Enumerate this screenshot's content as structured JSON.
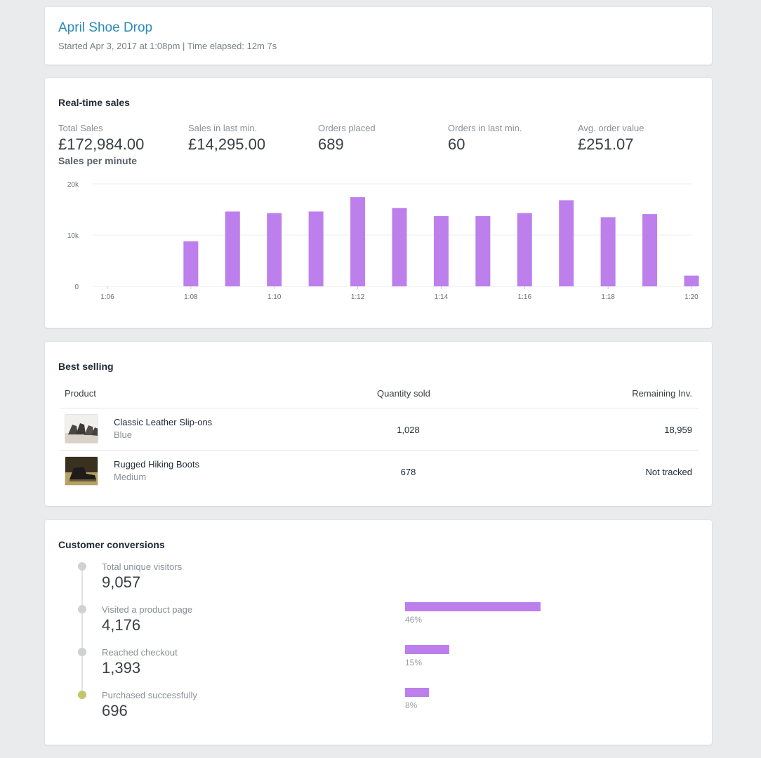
{
  "header": {
    "title": "April Shoe Drop",
    "subtitle": "Started Apr 3, 2017 at 1:08pm | Time elapsed: 12m 7s"
  },
  "realtime": {
    "title": "Real-time sales",
    "metrics": [
      {
        "label": "Total Sales",
        "value": "£172,984.00"
      },
      {
        "label": "Sales in last min.",
        "value": "£14,295.00"
      },
      {
        "label": "Orders placed",
        "value": "689"
      },
      {
        "label": "Orders in last min.",
        "value": "60"
      },
      {
        "label": "Avg. order value",
        "value": "£251.07"
      }
    ],
    "chart_title": "Sales per minute"
  },
  "chart_data": {
    "type": "bar",
    "title": "Sales per minute",
    "xlabel": "",
    "ylabel": "",
    "ylim": [
      0,
      20000
    ],
    "yticks": [
      0,
      10000,
      20000
    ],
    "ytick_labels": [
      "0",
      "10k",
      "20k"
    ],
    "x_range": [
      6,
      20
    ],
    "xticks": [
      6,
      8,
      10,
      12,
      14,
      16,
      18,
      20
    ],
    "xtick_labels": [
      "1:06",
      "1:08",
      "1:10",
      "1:12",
      "1:14",
      "1:16",
      "1:18",
      "1:20"
    ],
    "bars": [
      {
        "minute": 8,
        "value": 8800
      },
      {
        "minute": 9,
        "value": 14600
      },
      {
        "minute": 10,
        "value": 14300
      },
      {
        "minute": 11,
        "value": 14600
      },
      {
        "minute": 12,
        "value": 17400
      },
      {
        "minute": 13,
        "value": 15300
      },
      {
        "minute": 14,
        "value": 13700
      },
      {
        "minute": 15,
        "value": 13700
      },
      {
        "minute": 16,
        "value": 14300
      },
      {
        "minute": 17,
        "value": 16800
      },
      {
        "minute": 18,
        "value": 13500
      },
      {
        "minute": 19,
        "value": 14100
      },
      {
        "minute": 20,
        "value": 2100
      }
    ],
    "color": "#bd7fec",
    "grid": true,
    "legend": false
  },
  "best_selling": {
    "title": "Best selling",
    "columns": {
      "product": "Product",
      "quantity": "Quantity sold",
      "remaining": "Remaining Inv."
    },
    "rows": [
      {
        "name": "Classic Leather Slip-ons",
        "variant": "Blue",
        "quantity": "1,028",
        "remaining": "18,959",
        "thumb_icon": "slip-on-shoes-photo"
      },
      {
        "name": "Rugged Hiking Boots",
        "variant": "Medium",
        "quantity": "678",
        "remaining": "Not tracked",
        "thumb_icon": "hiking-boot-photo"
      }
    ]
  },
  "conversions": {
    "title": "Customer conversions",
    "steps": [
      {
        "label": "Total unique visitors",
        "value": "9,057",
        "percent": null,
        "pct_label": ""
      },
      {
        "label": "Visited a product page",
        "value": "4,176",
        "percent": 46,
        "pct_label": "46%"
      },
      {
        "label": "Reached checkout",
        "value": "1,393",
        "percent": 15,
        "pct_label": "15%"
      },
      {
        "label": "Purchased successfully",
        "value": "696",
        "percent": 8,
        "pct_label": "8%"
      }
    ],
    "dot_color": "#cfd1d4",
    "final_dot_color": "#c4c46a",
    "bar_color": "#bd7fec"
  }
}
